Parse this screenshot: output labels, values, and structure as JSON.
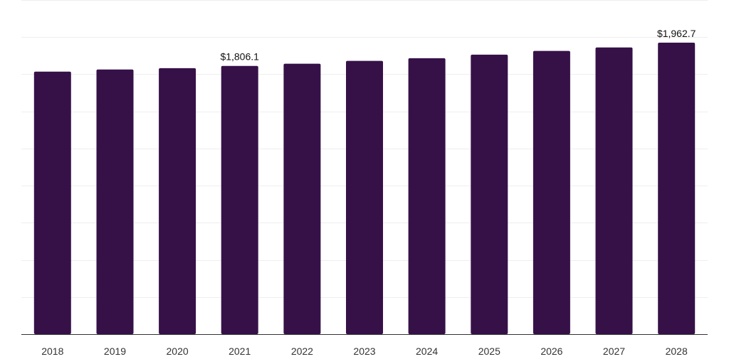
{
  "colors": {
    "bar": "#361148",
    "grid": "#eeeeee",
    "axis": "#333333"
  },
  "chart_data": {
    "type": "bar",
    "title": "",
    "xlabel": "",
    "ylabel": "",
    "categories": [
      "2018",
      "2019",
      "2020",
      "2021",
      "2022",
      "2023",
      "2024",
      "2025",
      "2026",
      "2027",
      "2028"
    ],
    "values": [
      1768.0,
      1782.0,
      1791.0,
      1806.1,
      1821.0,
      1840.0,
      1858.0,
      1882.0,
      1907.0,
      1930.0,
      1962.7
    ],
    "data_labels": [
      {
        "category": "2021",
        "text": "$1,806.1"
      },
      {
        "category": "2028",
        "text": "$1,962.7"
      }
    ],
    "ylim": [
      0,
      2250
    ],
    "grid": true,
    "y_tick_labels_shown": false,
    "legend": "none"
  }
}
